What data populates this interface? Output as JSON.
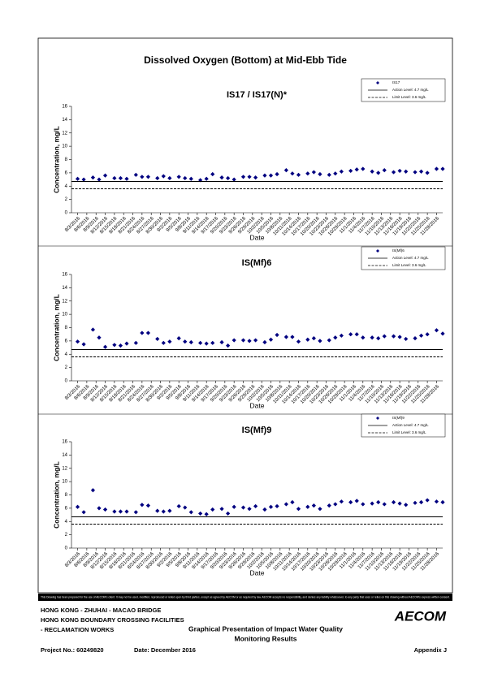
{
  "title": "Dissolved Oxygen (Bottom) at Mid-Ebb Tide",
  "chart_data": [
    {
      "type": "scatter",
      "title": "IS17 / IS17(N)*",
      "xlabel": "Date",
      "ylabel": "Concentration, mg/L",
      "legend": "upper right",
      "xlim": [
        "8/1/2016",
        "11/30/2016"
      ],
      "ylim": [
        0,
        16
      ],
      "yticks": [
        0,
        2,
        4,
        6,
        8,
        10,
        12,
        14,
        16
      ],
      "xticks": [
        "8/3/2016",
        "8/6/2016",
        "8/9/2016",
        "8/12/2016",
        "8/15/2016",
        "8/18/2016",
        "8/21/2016",
        "8/24/2016",
        "8/27/2016",
        "8/30/2016",
        "9/2/2016",
        "9/5/2016",
        "9/8/2016",
        "9/11/2016",
        "9/14/2016",
        "9/17/2016",
        "9/20/2016",
        "9/23/2016",
        "9/26/2016",
        "9/29/2016",
        "10/2/2016",
        "10/5/2016",
        "10/8/2016",
        "10/11/2016",
        "10/14/2016",
        "10/17/2016",
        "10/20/2016",
        "10/23/2016",
        "10/26/2016",
        "10/29/2016",
        "11/1/2016",
        "11/4/2016",
        "11/7/2016",
        "11/10/2016",
        "11/13/2016",
        "11/16/2016",
        "11/19/2016",
        "11/22/2016",
        "11/25/2016",
        "11/28/2016"
      ],
      "x": [
        "8/3/2016",
        "8/5/2016",
        "8/8/2016",
        "8/10/2016",
        "8/12/2016",
        "8/15/2016",
        "8/17/2016",
        "8/19/2016",
        "8/22/2016",
        "8/24/2016",
        "8/26/2016",
        "8/29/2016",
        "8/31/2016",
        "9/2/2016",
        "9/5/2016",
        "9/7/2016",
        "9/9/2016",
        "9/12/2016",
        "9/14/2016",
        "9/16/2016",
        "9/19/2016",
        "9/21/2016",
        "9/23/2016",
        "9/26/2016",
        "9/28/2016",
        "9/30/2016",
        "10/3/2016",
        "10/5/2016",
        "10/7/2016",
        "10/10/2016",
        "10/12/2016",
        "10/14/2016",
        "10/17/2016",
        "10/19/2016",
        "10/21/2016",
        "10/24/2016",
        "10/26/2016",
        "10/28/2016",
        "10/31/2016",
        "11/2/2016",
        "11/4/2016",
        "11/7/2016",
        "11/9/2016",
        "11/11/2016",
        "11/14/2016",
        "11/16/2016",
        "11/18/2016",
        "11/21/2016",
        "11/23/2016",
        "11/25/2016",
        "11/28/2016",
        "11/30/2016"
      ],
      "series": [
        {
          "name": "IS17",
          "color": "#000080",
          "values": [
            5.1,
            5.0,
            5.3,
            5.0,
            5.6,
            5.2,
            5.2,
            5.1,
            5.7,
            5.4,
            5.4,
            5.2,
            5.5,
            5.2,
            5.4,
            5.2,
            5.1,
            4.9,
            5.1,
            5.8,
            5.3,
            5.2,
            5.0,
            5.4,
            5.4,
            5.3,
            5.6,
            5.6,
            5.8,
            6.4,
            5.9,
            5.7,
            5.9,
            6.1,
            5.8,
            5.7,
            5.9,
            6.2,
            6.3,
            6.5,
            6.6,
            6.2,
            6.0,
            6.4,
            6.1,
            6.3,
            6.2,
            6.1,
            6.2,
            6.0,
            6.6,
            6.6
          ]
        },
        {
          "name": "Action Level: 4.7 mg/L",
          "color": "#000000",
          "dashed": false,
          "value": 4.7
        },
        {
          "name": "Limit Level: 3.6 mg/L",
          "color": "#000000",
          "dashed": true,
          "value": 3.6
        }
      ]
    },
    {
      "type": "scatter",
      "title": "IS(Mf)6",
      "xlabel": "Date",
      "ylabel": "Concentration, mg/L",
      "legend": "upper right",
      "xlim": [
        "8/1/2016",
        "11/30/2016"
      ],
      "ylim": [
        0,
        16
      ],
      "yticks": [
        0,
        2,
        4,
        6,
        8,
        10,
        12,
        14,
        16
      ],
      "xticks": [
        "8/3/2016",
        "8/6/2016",
        "8/9/2016",
        "8/12/2016",
        "8/15/2016",
        "8/18/2016",
        "8/21/2016",
        "8/24/2016",
        "8/27/2016",
        "8/30/2016",
        "9/2/2016",
        "9/5/2016",
        "9/8/2016",
        "9/11/2016",
        "9/14/2016",
        "9/17/2016",
        "9/20/2016",
        "9/23/2016",
        "9/26/2016",
        "9/29/2016",
        "10/2/2016",
        "10/5/2016",
        "10/8/2016",
        "10/11/2016",
        "10/14/2016",
        "10/17/2016",
        "10/20/2016",
        "10/23/2016",
        "10/26/2016",
        "10/29/2016",
        "11/1/2016",
        "11/4/2016",
        "11/7/2016",
        "11/10/2016",
        "11/13/2016",
        "11/16/2016",
        "11/19/2016",
        "11/22/2016",
        "11/25/2016",
        "11/28/2016"
      ],
      "x": [
        "8/3/2016",
        "8/5/2016",
        "8/8/2016",
        "8/10/2016",
        "8/12/2016",
        "8/15/2016",
        "8/17/2016",
        "8/19/2016",
        "8/22/2016",
        "8/24/2016",
        "8/26/2016",
        "8/29/2016",
        "8/31/2016",
        "9/2/2016",
        "9/5/2016",
        "9/7/2016",
        "9/9/2016",
        "9/12/2016",
        "9/14/2016",
        "9/16/2016",
        "9/19/2016",
        "9/21/2016",
        "9/23/2016",
        "9/26/2016",
        "9/28/2016",
        "9/30/2016",
        "10/3/2016",
        "10/5/2016",
        "10/7/2016",
        "10/10/2016",
        "10/12/2016",
        "10/14/2016",
        "10/17/2016",
        "10/19/2016",
        "10/21/2016",
        "10/24/2016",
        "10/26/2016",
        "10/28/2016",
        "10/31/2016",
        "11/2/2016",
        "11/4/2016",
        "11/7/2016",
        "11/9/2016",
        "11/11/2016",
        "11/14/2016",
        "11/16/2016",
        "11/18/2016",
        "11/21/2016",
        "11/23/2016",
        "11/25/2016",
        "11/28/2016",
        "11/30/2016"
      ],
      "series": [
        {
          "name": "IS(Mf)6",
          "color": "#000080",
          "values": [
            5.9,
            5.5,
            7.7,
            6.5,
            5.1,
            5.4,
            5.3,
            5.6,
            5.7,
            7.2,
            7.2,
            6.3,
            5.7,
            5.9,
            6.4,
            5.9,
            5.8,
            5.7,
            5.6,
            5.7,
            5.8,
            5.3,
            6.1,
            6.1,
            6.0,
            6.1,
            5.8,
            6.2,
            6.9,
            6.6,
            6.6,
            5.9,
            6.2,
            6.4,
            6.0,
            6.1,
            6.5,
            6.8,
            7.0,
            7.0,
            6.5,
            6.5,
            6.4,
            6.7,
            6.7,
            6.6,
            6.3,
            6.4,
            6.8,
            7.0,
            7.6,
            7.1
          ]
        },
        {
          "name": "Action Level: 4.7 mg/L",
          "color": "#000000",
          "dashed": false,
          "value": 4.7
        },
        {
          "name": "Limit Level: 3.6 mg/L",
          "color": "#000000",
          "dashed": true,
          "value": 3.6
        }
      ]
    },
    {
      "type": "scatter",
      "title": "IS(Mf)9",
      "xlabel": "Date",
      "ylabel": "Concentration, mg/L",
      "legend": "upper right",
      "xlim": [
        "8/1/2016",
        "11/30/2016"
      ],
      "ylim": [
        0,
        16
      ],
      "yticks": [
        0,
        2,
        4,
        6,
        8,
        10,
        12,
        14,
        16
      ],
      "xticks": [
        "8/3/2016",
        "8/6/2016",
        "8/9/2016",
        "8/12/2016",
        "8/15/2016",
        "8/18/2016",
        "8/21/2016",
        "8/24/2016",
        "8/27/2016",
        "8/30/2016",
        "9/2/2016",
        "9/5/2016",
        "9/8/2016",
        "9/11/2016",
        "9/14/2016",
        "9/17/2016",
        "9/20/2016",
        "9/23/2016",
        "9/26/2016",
        "9/29/2016",
        "10/2/2016",
        "10/5/2016",
        "10/8/2016",
        "10/11/2016",
        "10/14/2016",
        "10/17/2016",
        "10/20/2016",
        "10/23/2016",
        "10/26/2016",
        "10/29/2016",
        "11/1/2016",
        "11/4/2016",
        "11/7/2016",
        "11/10/2016",
        "11/13/2016",
        "11/16/2016",
        "11/19/2016",
        "11/22/2016",
        "11/25/2016",
        "11/28/2016"
      ],
      "x": [
        "8/3/2016",
        "8/5/2016",
        "8/8/2016",
        "8/10/2016",
        "8/12/2016",
        "8/15/2016",
        "8/17/2016",
        "8/19/2016",
        "8/22/2016",
        "8/24/2016",
        "8/26/2016",
        "8/29/2016",
        "8/31/2016",
        "9/2/2016",
        "9/5/2016",
        "9/7/2016",
        "9/9/2016",
        "9/12/2016",
        "9/14/2016",
        "9/16/2016",
        "9/19/2016",
        "9/21/2016",
        "9/23/2016",
        "9/26/2016",
        "9/28/2016",
        "9/30/2016",
        "10/3/2016",
        "10/5/2016",
        "10/7/2016",
        "10/10/2016",
        "10/12/2016",
        "10/14/2016",
        "10/17/2016",
        "10/19/2016",
        "10/21/2016",
        "10/24/2016",
        "10/26/2016",
        "10/28/2016",
        "10/31/2016",
        "11/2/2016",
        "11/4/2016",
        "11/7/2016",
        "11/9/2016",
        "11/11/2016",
        "11/14/2016",
        "11/16/2016",
        "11/18/2016",
        "11/21/2016",
        "11/23/2016",
        "11/25/2016",
        "11/28/2016",
        "11/30/2016"
      ],
      "series": [
        {
          "name": "IS(Mf)9",
          "color": "#000080",
          "values": [
            6.2,
            5.4,
            8.7,
            6.0,
            5.8,
            5.5,
            5.5,
            5.5,
            5.4,
            6.5,
            6.4,
            5.6,
            5.5,
            5.6,
            6.3,
            6.1,
            5.4,
            5.2,
            5.1,
            5.8,
            5.9,
            5.2,
            6.2,
            6.1,
            5.9,
            6.3,
            5.8,
            6.2,
            6.3,
            6.6,
            6.9,
            5.9,
            6.2,
            6.4,
            5.9,
            6.4,
            6.6,
            7.0,
            6.9,
            7.1,
            6.6,
            6.7,
            6.9,
            6.6,
            6.9,
            6.7,
            6.5,
            6.8,
            6.9,
            7.2,
            7.0,
            6.9
          ]
        },
        {
          "name": "Action Level: 4.7 mg/L",
          "color": "#000000",
          "dashed": false,
          "value": 4.7
        },
        {
          "name": "Limit Level: 3.6 mg/L",
          "color": "#000000",
          "dashed": true,
          "value": 3.6
        }
      ]
    }
  ],
  "disclaimer": "This Drawing has been prepared for the use of AECOM's client. It may not be used, modified, reproduced or relied upon by third parties, except as agreed by AECOM or as required by law. AECOM accepts no responsibility, and denies any liability whatsoever, to any party that uses or relies on this drawing without AECOM's express written consent.",
  "footer": {
    "project_lines": [
      "HONG KONG - ZHUHAI - MACAO BRIDGE",
      "HONG KONG BOUNDARY CROSSING FACILITIES",
      "- RECLAMATION WORKS"
    ],
    "drawing_title": [
      "Graphical Presentation of Impact Water Quality",
      "Monitoring Results"
    ],
    "logo": "AECOM",
    "project_no": "Project No.: 60249820",
    "date": "Date: December 2016",
    "appendix": "Appendix J"
  }
}
